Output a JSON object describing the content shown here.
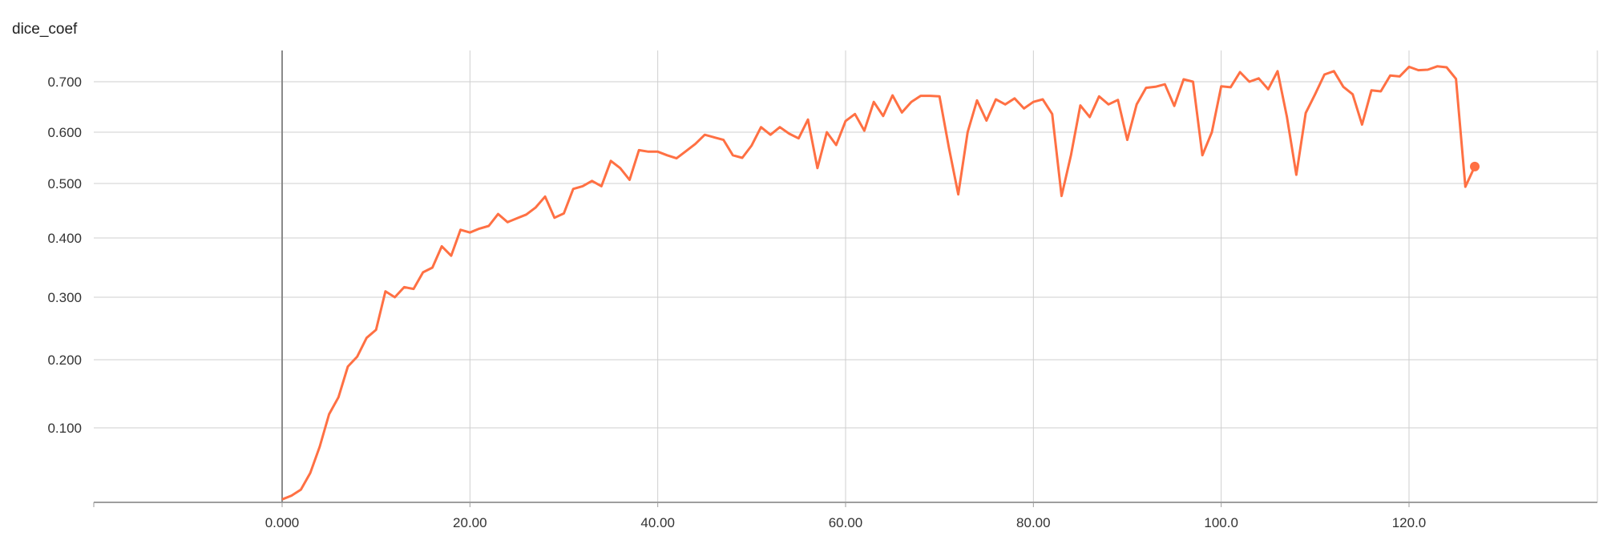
{
  "chart_data": {
    "type": "line",
    "title": "dice_coef",
    "xlabel": "",
    "ylabel": "",
    "xlim": [
      -20,
      140
    ],
    "ylim": [
      0,
      0.75
    ],
    "x_scale": "linear",
    "y_scale": "nonlinear (tensorboard smoothing axis)",
    "grid": true,
    "legend": "none",
    "line_color": "#ff7043",
    "x_ticks": [
      0,
      20,
      40,
      60,
      80,
      100,
      120
    ],
    "x_tick_labels": [
      "0.000",
      "20.00",
      "40.00",
      "60.00",
      "80.00",
      "100.0",
      "120.0"
    ],
    "y_ticks": [
      0.1,
      0.2,
      0.3,
      0.4,
      0.5,
      0.6,
      0.7
    ],
    "y_tick_labels": [
      "0.100",
      "0.200",
      "0.300",
      "0.400",
      "0.500",
      "0.600",
      "0.700"
    ],
    "series": [
      {
        "x": [
          0,
          1,
          2,
          3,
          4,
          5,
          6,
          7,
          8,
          9,
          10,
          11,
          12,
          13,
          14,
          15,
          16,
          17,
          18,
          19,
          20,
          21,
          22,
          23,
          24,
          25,
          26,
          27,
          28,
          29,
          30,
          31,
          32,
          33,
          34,
          35,
          36,
          37,
          38,
          39,
          40,
          41,
          42,
          43,
          44,
          45,
          46,
          47,
          48,
          49,
          50,
          51,
          52,
          53,
          54,
          55,
          56,
          57,
          58,
          59,
          60,
          61,
          62,
          63,
          64,
          65,
          66,
          67,
          68,
          69,
          70,
          71,
          72,
          73,
          74,
          75,
          76,
          77,
          78,
          79,
          80,
          81,
          82,
          83,
          84,
          85,
          86,
          87,
          88,
          89,
          90,
          91,
          92,
          93,
          94,
          95,
          96,
          97,
          98,
          99,
          100,
          101,
          102,
          103,
          104,
          105,
          106,
          107,
          108,
          109,
          110,
          111,
          112,
          113,
          114,
          115,
          116,
          117,
          118,
          119,
          120,
          121,
          122,
          123,
          124,
          125,
          126,
          127
        ],
        "y": [
          0.005,
          0.01,
          0.018,
          0.04,
          0.075,
          0.12,
          0.145,
          0.19,
          0.205,
          0.235,
          0.248,
          0.31,
          0.3,
          0.317,
          0.314,
          0.342,
          0.35,
          0.386,
          0.37,
          0.415,
          0.41,
          0.417,
          0.422,
          0.444,
          0.429,
          0.436,
          0.443,
          0.456,
          0.476,
          0.437,
          0.445,
          0.49,
          0.495,
          0.505,
          0.495,
          0.544,
          0.53,
          0.507,
          0.565,
          0.562,
          0.562,
          0.555,
          0.549,
          0.563,
          0.577,
          0.595,
          0.59,
          0.585,
          0.555,
          0.55,
          0.574,
          0.61,
          0.595,
          0.61,
          0.597,
          0.588,
          0.625,
          0.53,
          0.6,
          0.575,
          0.622,
          0.636,
          0.603,
          0.66,
          0.632,
          0.673,
          0.639,
          0.66,
          0.672,
          0.672,
          0.671,
          0.57,
          0.48,
          0.6,
          0.663,
          0.623,
          0.665,
          0.655,
          0.667,
          0.647,
          0.66,
          0.665,
          0.636,
          0.477,
          0.555,
          0.653,
          0.63,
          0.671,
          0.655,
          0.664,
          0.585,
          0.655,
          0.688,
          0.69,
          0.695,
          0.652,
          0.705,
          0.7,
          0.555,
          0.6,
          0.691,
          0.689,
          0.72,
          0.7,
          0.707,
          0.685,
          0.722,
          0.63,
          0.517,
          0.638,
          0.675,
          0.715,
          0.722,
          0.69,
          0.675,
          0.615,
          0.683,
          0.681,
          0.713,
          0.711,
          0.731,
          0.724,
          0.725,
          0.732,
          0.73,
          0.706,
          0.494,
          0.533
        ]
      }
    ]
  }
}
